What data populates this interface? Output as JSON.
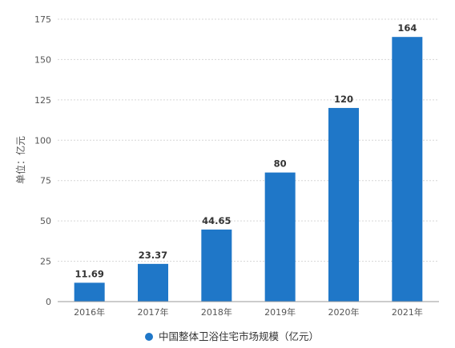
{
  "chart_data": {
    "type": "bar",
    "categories": [
      "2016年",
      "2017年",
      "2018年",
      "2019年",
      "2020年",
      "2021年"
    ],
    "series": [
      {
        "name": "中国整体卫浴住宅市场规模（亿元）",
        "values": [
          11.69,
          23.37,
          44.65,
          80,
          120,
          164
        ]
      }
    ],
    "data_labels": [
      "11.69",
      "23.37",
      "44.65",
      "80",
      "120",
      "164"
    ],
    "ylabel": "单位：亿元",
    "xlabel": "",
    "ylim": [
      0,
      175
    ],
    "yticks": [
      0,
      25,
      50,
      75,
      100,
      125,
      150,
      175
    ],
    "grid": true,
    "legend_position": "bottom-center",
    "bar_color": "#1f77c8"
  }
}
